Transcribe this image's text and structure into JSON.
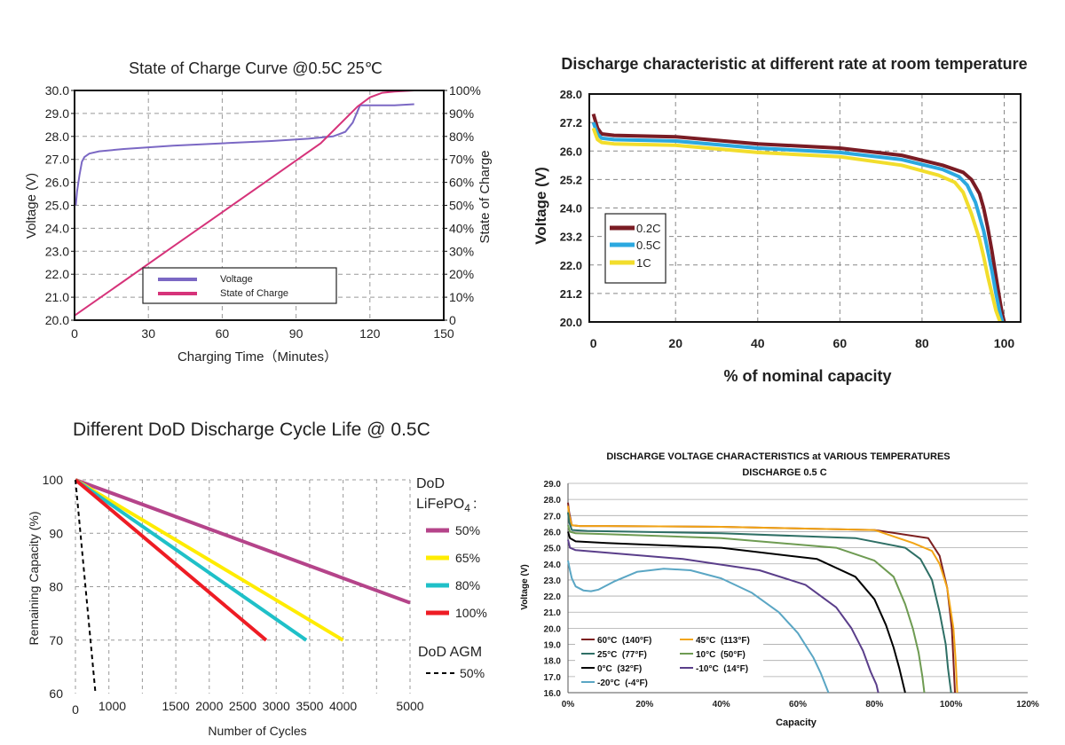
{
  "chart_data": [
    {
      "type": "line",
      "title": "State of Charge Curve @0.5C 25℃",
      "xlabel": "Charging Time（Minutes）",
      "ylabel": "Voltage (V)",
      "y2label": "State of Charge",
      "xlim": [
        0,
        150
      ],
      "ylim": [
        20,
        30
      ],
      "y2lim": [
        0,
        100
      ],
      "x_ticks": [
        "0",
        "30",
        "60",
        "90",
        "120",
        "150"
      ],
      "y_ticks": [
        "20.0",
        "21.0",
        "22.0",
        "23.0",
        "24.0",
        "25.0",
        "26.0",
        "27.0",
        "28.0",
        "29.0",
        "30.0"
      ],
      "y2_ticks": [
        "0",
        "10%",
        "20%",
        "30%",
        "40%",
        "50%",
        "60%",
        "70%",
        "80%",
        "90%",
        "100%"
      ],
      "grid": true,
      "legend_position": "bottom-center",
      "series": [
        {
          "name": "Voltage",
          "axis": "left",
          "color": "#7b68c4",
          "x": [
            0.5,
            1,
            2,
            3,
            4,
            6,
            10,
            20,
            40,
            60,
            80,
            95,
            105,
            110,
            113,
            115,
            116,
            117,
            120,
            130,
            138
          ],
          "y": [
            25.0,
            25.6,
            26.3,
            26.9,
            27.1,
            27.25,
            27.35,
            27.45,
            27.6,
            27.7,
            27.8,
            27.9,
            28.0,
            28.2,
            28.6,
            29.1,
            29.35,
            29.35,
            29.35,
            29.35,
            29.4
          ]
        },
        {
          "name": "State of Charge",
          "axis": "right",
          "color": "#d6337a",
          "x": [
            0,
            20,
            40,
            60,
            80,
            100,
            115,
            120,
            125,
            130,
            138
          ],
          "y": [
            2,
            17,
            32,
            47,
            62,
            77,
            93,
            97,
            99,
            99.5,
            100
          ]
        }
      ]
    },
    {
      "type": "line",
      "title": "Discharge characteristic at different rate at room temperature",
      "xlabel": "% of nominal capacity",
      "ylabel": "Voltage (V)",
      "xlim": [
        -1,
        104
      ],
      "ylim": [
        20,
        28
      ],
      "x_ticks": [
        "0",
        "20",
        "40",
        "60",
        "80",
        "100"
      ],
      "y_ticks": [
        "20.0",
        "21.2",
        "22.0",
        "23.2",
        "24.0",
        "25.2",
        "26.0",
        "27.2",
        "28.0"
      ],
      "grid": true,
      "legend_position": "bottom-left",
      "series": [
        {
          "name": "0.2C",
          "color": "#7a1c24",
          "x": [
            0,
            0.5,
            1,
            2,
            5,
            20,
            40,
            60,
            75,
            85,
            90,
            92,
            94,
            95,
            96,
            97,
            98,
            99,
            99.5,
            100
          ],
          "y": [
            27.3,
            27.05,
            26.8,
            26.6,
            26.55,
            26.5,
            26.25,
            26.1,
            25.85,
            25.5,
            25.25,
            25.0,
            24.5,
            24.0,
            23.3,
            22.5,
            21.6,
            20.7,
            20.3,
            20.0
          ]
        },
        {
          "name": "0.5C",
          "color": "#2ba8e0",
          "x": [
            0,
            0.5,
            1,
            2,
            5,
            20,
            40,
            60,
            75,
            85,
            89,
            91,
            93,
            95,
            96,
            97,
            98,
            99,
            99.6
          ],
          "y": [
            27.0,
            26.8,
            26.6,
            26.45,
            26.4,
            26.35,
            26.1,
            25.95,
            25.7,
            25.35,
            25.1,
            24.8,
            24.2,
            23.2,
            22.5,
            21.8,
            21.0,
            20.3,
            20.0
          ]
        },
        {
          "name": "1C",
          "color": "#f2dd2c",
          "x": [
            0,
            0.5,
            1,
            2,
            5,
            20,
            40,
            60,
            75,
            84,
            88,
            90,
            92,
            94,
            95,
            96,
            97,
            98,
            99
          ],
          "y": [
            26.8,
            26.6,
            26.4,
            26.3,
            26.25,
            26.2,
            25.95,
            25.8,
            25.5,
            25.15,
            24.9,
            24.55,
            23.8,
            22.9,
            22.3,
            21.6,
            21.0,
            20.4,
            20.0
          ]
        }
      ]
    },
    {
      "type": "line",
      "title": "Different DoD Discharge Cycle Life @",
      "title_suffix": "0.5C",
      "xlabel": "Number of Cycles",
      "ylabel": "Remaining Capacity (%)",
      "xlim": [
        0,
        5000
      ],
      "ylim": [
        60,
        100
      ],
      "x_ticks": [
        "0",
        "1000",
        "1500",
        "2000",
        "2500",
        "3000",
        "3500",
        "4000",
        "5000"
      ],
      "y_ticks": [
        "60",
        "70",
        "80",
        "90",
        "100"
      ],
      "grid": true,
      "legend_position": "right",
      "legend_title_lfp": "DoD",
      "legend_title_lfp_chem": "LiFePO",
      "legend_title_lfp_sub": "4",
      "legend_title_lfp_colon": ":",
      "legend_title_agm": "DoD AGM",
      "series": [
        {
          "name": "50%",
          "color": "#b5448a",
          "x": [
            0,
            5000
          ],
          "y": [
            100,
            77
          ]
        },
        {
          "name": "65%",
          "color": "#ffec00",
          "x": [
            0,
            4000
          ],
          "y": [
            100,
            70
          ]
        },
        {
          "name": "80%",
          "color": "#1fc0c8",
          "x": [
            0,
            3450
          ],
          "y": [
            100,
            70
          ]
        },
        {
          "name": "100%",
          "color": "#ee1c24",
          "x": [
            0,
            2850
          ],
          "y": [
            100,
            70
          ]
        },
        {
          "name": "50%",
          "color": "#000000",
          "dashed": true,
          "x": [
            0,
            300
          ],
          "y": [
            100,
            60
          ]
        }
      ]
    },
    {
      "type": "line",
      "title": "DISCHARGE VOLTAGE CHARACTERISTICS at VARIOUS TEMPERATURES",
      "subtitle": "DISCHARGE 0.5 C",
      "xlabel": "Capacity",
      "ylabel": "Voltage (V)",
      "xlim": [
        0,
        120
      ],
      "ylim": [
        16,
        29
      ],
      "x_ticks": [
        "0%",
        "20%",
        "40%",
        "60%",
        "80%",
        "100%",
        "120%"
      ],
      "y_ticks": [
        "16.0",
        "17.0",
        "18.0",
        "19.0",
        "20.0",
        "21.0",
        "22.0",
        "23.0",
        "24.0",
        "25.0",
        "26.0",
        "27.0",
        "28.0",
        "29.0"
      ],
      "grid": true,
      "legend_position": "bottom-left",
      "series": [
        {
          "name": "60°C  (140°F)",
          "color": "#7d2020",
          "x": [
            0,
            0.3,
            1,
            3,
            10,
            40,
            80,
            94,
            97,
            99,
            100.2,
            100.6,
            101
          ],
          "y": [
            27.8,
            27.2,
            26.4,
            26.35,
            26.35,
            26.3,
            26.1,
            25.6,
            24.5,
            22.5,
            20.0,
            18.0,
            16.0
          ]
        },
        {
          "name": "45°C  (113°F)",
          "color": "#f2a516",
          "x": [
            0,
            0.3,
            1,
            3,
            10,
            40,
            80,
            90,
            95,
            97,
            99,
            100.6,
            101.2,
            101.6
          ],
          "y": [
            27.6,
            27.0,
            26.4,
            26.35,
            26.35,
            26.3,
            26.1,
            25.3,
            24.8,
            24.0,
            22.5,
            20.0,
            18.0,
            16.0
          ]
        },
        {
          "name": "25°C  (77°F)",
          "color": "#2e6f65",
          "x": [
            0,
            0.3,
            1,
            5,
            40,
            75,
            88,
            92,
            95,
            97,
            98.6,
            99.2,
            100
          ],
          "y": [
            27.2,
            26.6,
            26.1,
            26.05,
            25.9,
            25.6,
            25.0,
            24.3,
            23.0,
            21.0,
            19.0,
            17.5,
            16.0
          ]
        },
        {
          "name": "10°C  (50°F)",
          "color": "#6e9b52",
          "x": [
            0,
            0.5,
            2,
            10,
            40,
            70,
            80,
            85,
            88,
            90,
            91.5,
            92.5,
            93
          ],
          "y": [
            26.4,
            26.0,
            25.9,
            25.85,
            25.6,
            25.0,
            24.2,
            23.2,
            21.5,
            20.0,
            18.5,
            17.0,
            16.0
          ]
        },
        {
          "name": "0°C  (32°F)",
          "color": "#000000",
          "x": [
            0,
            0.5,
            2,
            10,
            40,
            65,
            75,
            80,
            83,
            85,
            86.5,
            87.5,
            88
          ],
          "y": [
            26.0,
            25.6,
            25.4,
            25.3,
            25.0,
            24.3,
            23.2,
            21.8,
            20.2,
            18.8,
            17.5,
            16.5,
            16.0
          ]
        },
        {
          "name": "-10°C  (14°F)",
          "color": "#5a3e8a",
          "x": [
            0,
            0.5,
            2,
            10,
            30,
            50,
            62,
            70,
            74,
            77,
            79,
            80.5,
            81
          ],
          "y": [
            25.5,
            25.0,
            24.85,
            24.7,
            24.3,
            23.6,
            22.7,
            21.3,
            20.0,
            18.6,
            17.3,
            16.5,
            16.0
          ]
        },
        {
          "name": "-20°C  (-4°F)",
          "color": "#5aa6c4",
          "x": [
            0,
            0.5,
            1,
            2,
            4,
            6,
            8,
            12,
            18,
            25,
            32,
            40,
            48,
            55,
            60,
            64,
            66,
            68
          ],
          "y": [
            24.2,
            23.6,
            23.1,
            22.6,
            22.35,
            22.3,
            22.4,
            22.9,
            23.5,
            23.7,
            23.6,
            23.1,
            22.2,
            21.0,
            19.7,
            18.2,
            17.2,
            16.0
          ]
        }
      ]
    }
  ]
}
